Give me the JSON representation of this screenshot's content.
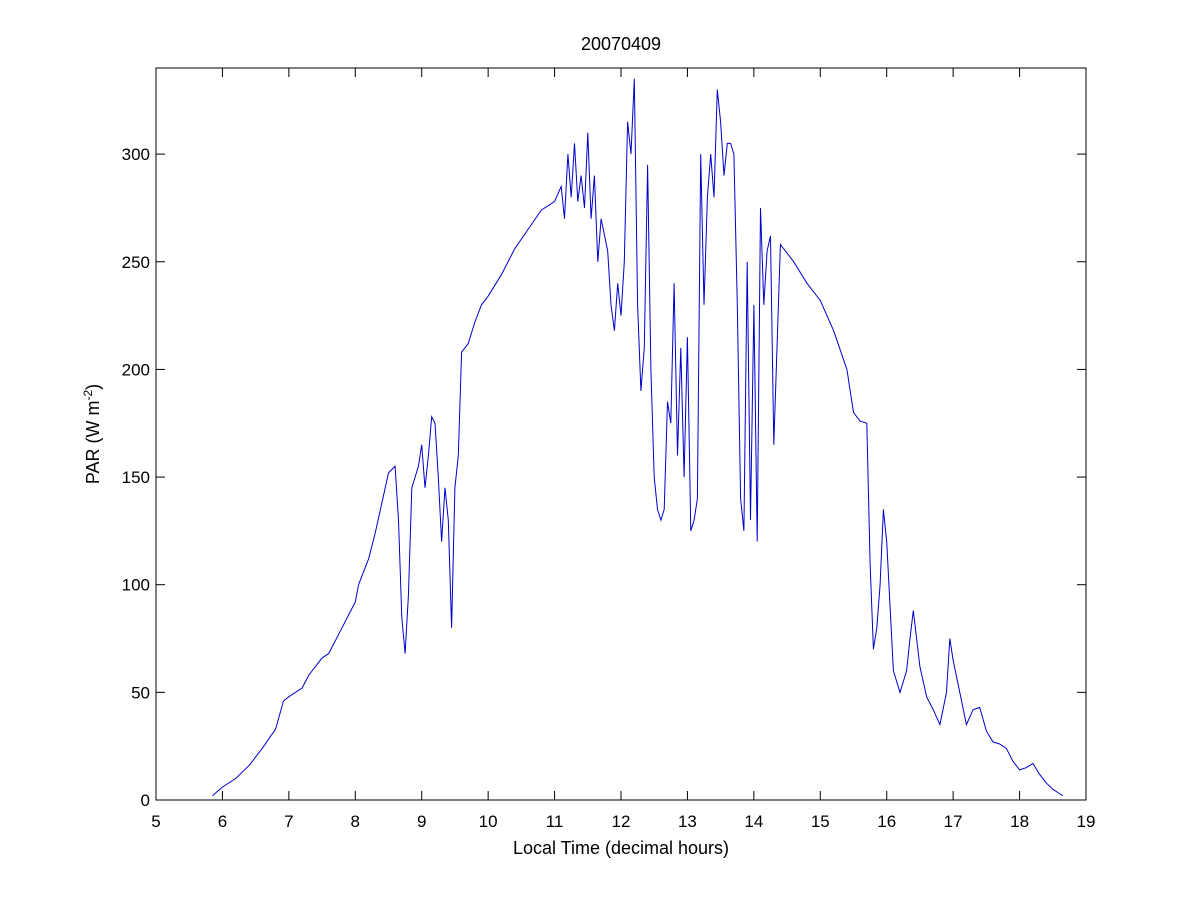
{
  "chart_data": {
    "type": "line",
    "title": "20070409",
    "xlabel": "Local Time (decimal hours)",
    "ylabel": "PAR (W m",
    "ylabel_sup": "-2",
    "ylabel_end": ")",
    "xlim": [
      5,
      19
    ],
    "ylim": [
      0,
      340
    ],
    "xticks": [
      5,
      6,
      7,
      8,
      9,
      10,
      11,
      12,
      13,
      14,
      15,
      16,
      17,
      18,
      19
    ],
    "yticks": [
      0,
      50,
      100,
      150,
      200,
      250,
      300
    ],
    "grid": false,
    "line_color": "#0000cc",
    "series": [
      {
        "x": [
          5.85,
          6.0,
          6.2,
          6.4,
          6.6,
          6.8,
          6.92,
          7.0,
          7.2,
          7.3,
          7.5,
          7.6,
          7.8,
          8.0,
          8.05,
          8.1,
          8.2,
          8.3,
          8.4,
          8.5,
          8.6,
          8.65,
          8.7,
          8.75,
          8.8,
          8.85,
          8.9,
          8.95,
          9.0,
          9.05,
          9.1,
          9.15,
          9.2,
          9.25,
          9.3,
          9.35,
          9.4,
          9.45,
          9.5,
          9.55,
          9.6,
          9.7,
          9.8,
          9.9,
          10.0,
          10.2,
          10.4,
          10.6,
          10.8,
          11.0,
          11.1,
          11.15,
          11.2,
          11.25,
          11.3,
          11.35,
          11.4,
          11.45,
          11.5,
          11.55,
          11.6,
          11.65,
          11.7,
          11.8,
          11.85,
          11.9,
          11.95,
          12.0,
          12.05,
          12.1,
          12.15,
          12.2,
          12.25,
          12.3,
          12.35,
          12.4,
          12.45,
          12.5,
          12.55,
          12.6,
          12.65,
          12.7,
          12.75,
          12.8,
          12.85,
          12.9,
          12.95,
          13.0,
          13.05,
          13.1,
          13.15,
          13.2,
          13.25,
          13.3,
          13.35,
          13.4,
          13.45,
          13.5,
          13.55,
          13.6,
          13.65,
          13.7,
          13.75,
          13.8,
          13.85,
          13.9,
          13.95,
          14.0,
          14.05,
          14.1,
          14.15,
          14.2,
          14.25,
          14.3,
          14.4,
          14.6,
          14.8,
          15.0,
          15.2,
          15.4,
          15.5,
          15.6,
          15.7,
          15.75,
          15.8,
          15.85,
          15.9,
          15.95,
          16.0,
          16.1,
          16.2,
          16.3,
          16.35,
          16.4,
          16.5,
          16.6,
          16.7,
          16.8,
          16.9,
          16.95,
          17.0,
          17.1,
          17.2,
          17.3,
          17.4,
          17.5,
          17.6,
          17.7,
          17.8,
          17.9,
          18.0,
          18.1,
          18.2,
          18.3,
          18.4,
          18.5,
          18.6,
          18.65
        ],
        "y": [
          2,
          6,
          10,
          16,
          24,
          33,
          46,
          48,
          52,
          58,
          66,
          68,
          80,
          92,
          100,
          104,
          112,
          124,
          138,
          152,
          155,
          130,
          85,
          68,
          95,
          145,
          150,
          155,
          165,
          145,
          160,
          178,
          175,
          150,
          120,
          145,
          130,
          80,
          145,
          160,
          208,
          212,
          222,
          230,
          234,
          244,
          256,
          265,
          274,
          278,
          285,
          270,
          300,
          280,
          305,
          278,
          290,
          275,
          310,
          270,
          290,
          250,
          270,
          255,
          230,
          218,
          240,
          225,
          250,
          315,
          300,
          335,
          230,
          190,
          210,
          295,
          200,
          150,
          135,
          130,
          135,
          185,
          175,
          240,
          160,
          210,
          150,
          215,
          125,
          130,
          140,
          300,
          230,
          280,
          300,
          280,
          330,
          315,
          290,
          305,
          305,
          300,
          230,
          140,
          125,
          250,
          130,
          230,
          120,
          275,
          230,
          255,
          262,
          165,
          258,
          250,
          240,
          232,
          218,
          200,
          180,
          176,
          175,
          110,
          70,
          80,
          100,
          135,
          120,
          60,
          50,
          60,
          75,
          88,
          62,
          48,
          42,
          35,
          50,
          75,
          65,
          50,
          35,
          42,
          43,
          32,
          27,
          26,
          24,
          18,
          14,
          15,
          17,
          12,
          8,
          5,
          3,
          2
        ]
      }
    ]
  }
}
